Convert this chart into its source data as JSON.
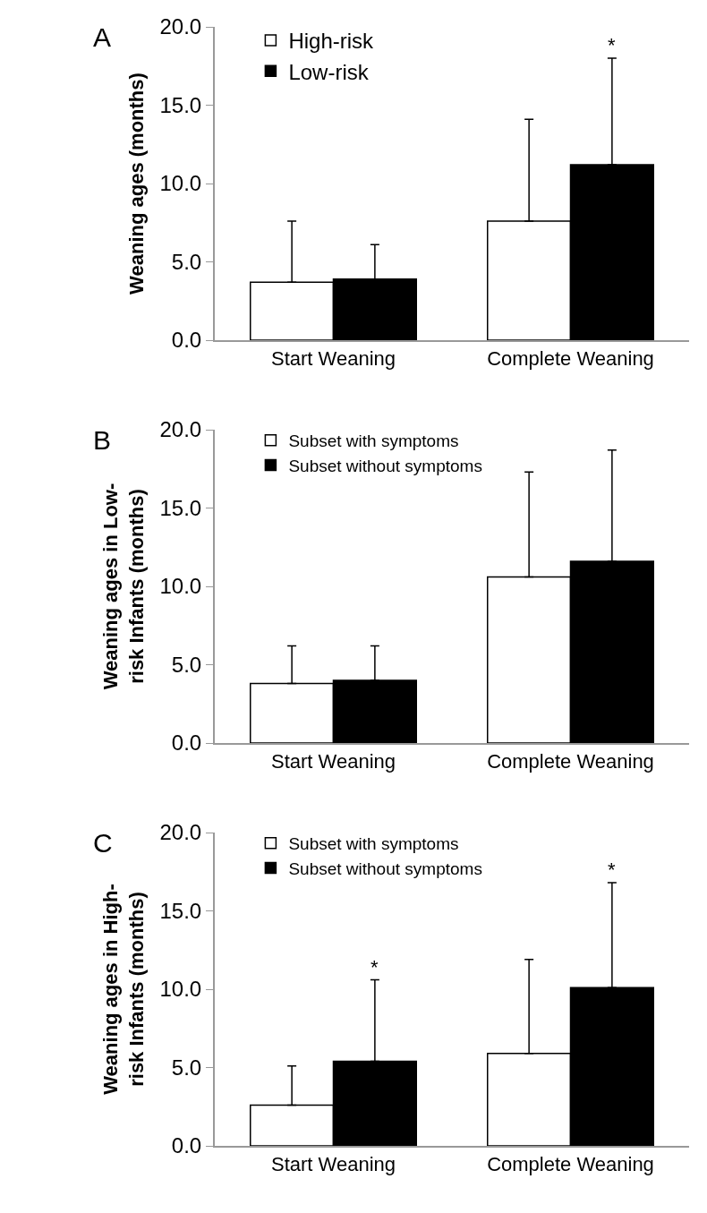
{
  "chart_data": [
    {
      "type": "bar",
      "annotations": [
        "A",
        "*"
      ],
      "ylabel": "Weaning ages (months)",
      "categories": [
        "Start Weaning",
        "Complete Weaning"
      ],
      "series": [
        {
          "name": "High-risk",
          "color": "#ffffff",
          "values": [
            3.7,
            7.6
          ],
          "errors": [
            [
              3.7,
              7.6
            ],
            [
              7.6,
              14.1
            ]
          ]
        },
        {
          "name": "Low-risk",
          "color": "#000000",
          "values": [
            3.9,
            11.2
          ],
          "errors": [
            [
              3.9,
              6.1
            ],
            [
              11.2,
              18.0
            ]
          ]
        }
      ],
      "ylim": [
        0,
        20
      ],
      "yticks": [
        {
          "value": 0,
          "label": "0.0"
        },
        {
          "value": 5,
          "label": "5.0"
        },
        {
          "value": 10,
          "label": "10.0"
        },
        {
          "value": 15,
          "label": "15.0"
        },
        {
          "value": 20,
          "label": "20.0"
        }
      ],
      "grid": false,
      "legend": "top left"
    },
    {
      "type": "bar",
      "annotations": [
        "B"
      ],
      "ylabel": "Weaning ages in Low-\nrisk Infants (months)",
      "categories": [
        "Start Weaning",
        "Complete Weaning"
      ],
      "series": [
        {
          "name": "Subset with symptoms",
          "color": "#ffffff",
          "values": [
            3.8,
            10.6
          ],
          "errors": [
            [
              3.8,
              6.2
            ],
            [
              10.6,
              17.3
            ]
          ]
        },
        {
          "name": "Subset without symptoms",
          "color": "#000000",
          "values": [
            4.0,
            11.6
          ],
          "errors": [
            [
              4.0,
              6.2
            ],
            [
              11.6,
              18.7
            ]
          ]
        }
      ],
      "ylim": [
        0,
        20
      ],
      "yticks": [
        {
          "value": 0,
          "label": "0.0"
        },
        {
          "value": 5,
          "label": "5.0"
        },
        {
          "value": 10,
          "label": "10.0"
        },
        {
          "value": 15,
          "label": "15.0"
        },
        {
          "value": 20,
          "label": "20.0"
        }
      ],
      "grid": false,
      "legend": "top left"
    },
    {
      "type": "bar",
      "annotations": [
        "C",
        "*",
        "*"
      ],
      "ylabel": "Weaning ages in High-\nrisk Infants (months)",
      "categories": [
        "Start Weaning",
        "Complete Weaning"
      ],
      "series": [
        {
          "name": "Subset with symptoms",
          "color": "#ffffff",
          "values": [
            2.6,
            5.9
          ],
          "errors": [
            [
              2.6,
              5.1
            ],
            [
              5.9,
              11.9
            ]
          ]
        },
        {
          "name": "Subset without symptoms",
          "color": "#000000",
          "values": [
            5.4,
            10.1
          ],
          "errors": [
            [
              5.4,
              10.6
            ],
            [
              10.1,
              16.8
            ]
          ]
        }
      ],
      "ylim": [
        0,
        20
      ],
      "yticks": [
        {
          "value": 0,
          "label": "0.0"
        },
        {
          "value": 5,
          "label": "5.0"
        },
        {
          "value": 10,
          "label": "10.0"
        },
        {
          "value": 15,
          "label": "15.0"
        },
        {
          "value": 20,
          "label": "20.0"
        }
      ],
      "grid": false,
      "legend": "top left"
    }
  ]
}
